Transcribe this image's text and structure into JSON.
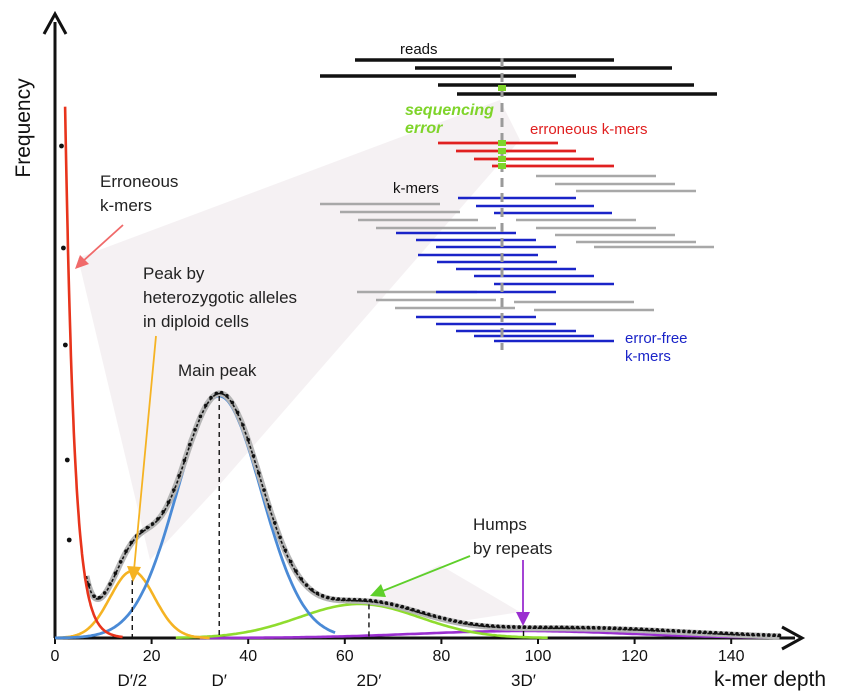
{
  "axes": {
    "y_label": "Frequency",
    "x_label": "k-mer depth",
    "x_ticks": [
      "0",
      "20",
      "40",
      "60",
      "80",
      "100",
      "120",
      "140"
    ],
    "x_tick_values": [
      0,
      20,
      40,
      60,
      80,
      100,
      120,
      140
    ],
    "x_range": [
      0,
      150
    ]
  },
  "markers": [
    {
      "label": "D′/2",
      "depth": 16
    },
    {
      "label": "D′",
      "depth": 34
    },
    {
      "label": "2D′",
      "depth": 65
    },
    {
      "label": "3D′",
      "depth": 97
    }
  ],
  "annotations": {
    "erroneous": [
      "Erroneous",
      "k-mers"
    ],
    "heterozygous": [
      "Peak by",
      "heterozygotic alleles",
      "in diploid cells"
    ],
    "main_peak": "Main peak",
    "repeats": [
      "Humps",
      "by repeats"
    ]
  },
  "inset": {
    "reads": "reads",
    "sequencing_error": [
      "sequencing",
      "error"
    ],
    "erroneous_kmers": "erroneous k-mers",
    "kmers": "k-mers",
    "error_free": [
      "error-free",
      "k-mers"
    ]
  },
  "colors": {
    "error_curve": "#e8341c",
    "het_peak": "#f5b323",
    "main_peak": "#4a8ad6",
    "repeat_2x": "#8fdc2e",
    "repeat_3x": "#9a2fd0",
    "reads": "#111111",
    "error_kmers": "#e02020",
    "error_free_kmers": "#1a24c8",
    "other_kmers": "#a8a8a8",
    "error_marker": "#7fd42a"
  }
}
